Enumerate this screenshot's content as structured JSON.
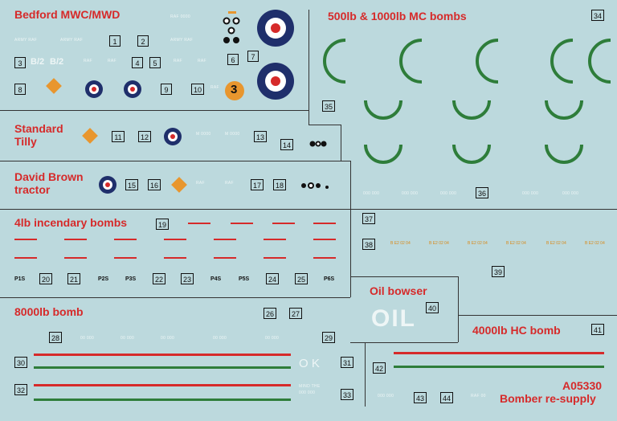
{
  "sections": {
    "bedford": "Bedford MWC/MWD",
    "bombs_mc": "500lb & 1000lb MC bombs",
    "tilly": "Standard Tilly",
    "tractor": "David Brown tractor",
    "incendiary": "4lb incendary bombs",
    "oil": "Oil bowser",
    "bomb8000": "8000lb bomb",
    "bomb4000": "4000lb HC bomb"
  },
  "product_code": "A05330",
  "product_name": "Bomber re-supply",
  "markings": {
    "b2a": "B/2",
    "b2b": "B/2",
    "orange_three": "3",
    "oil_large": "OIL",
    "ok": "O K",
    "p1": "P1S",
    "p2": "P2S",
    "p3": "P3S",
    "p4": "P4S",
    "p5": "P5S",
    "p6": "P6S"
  },
  "colors": {
    "background": "#bcd9dd",
    "red": "#d62a2a",
    "green": "#2e7d3a",
    "raf_blue": "#1f2f6b",
    "orange": "#e8962e"
  }
}
